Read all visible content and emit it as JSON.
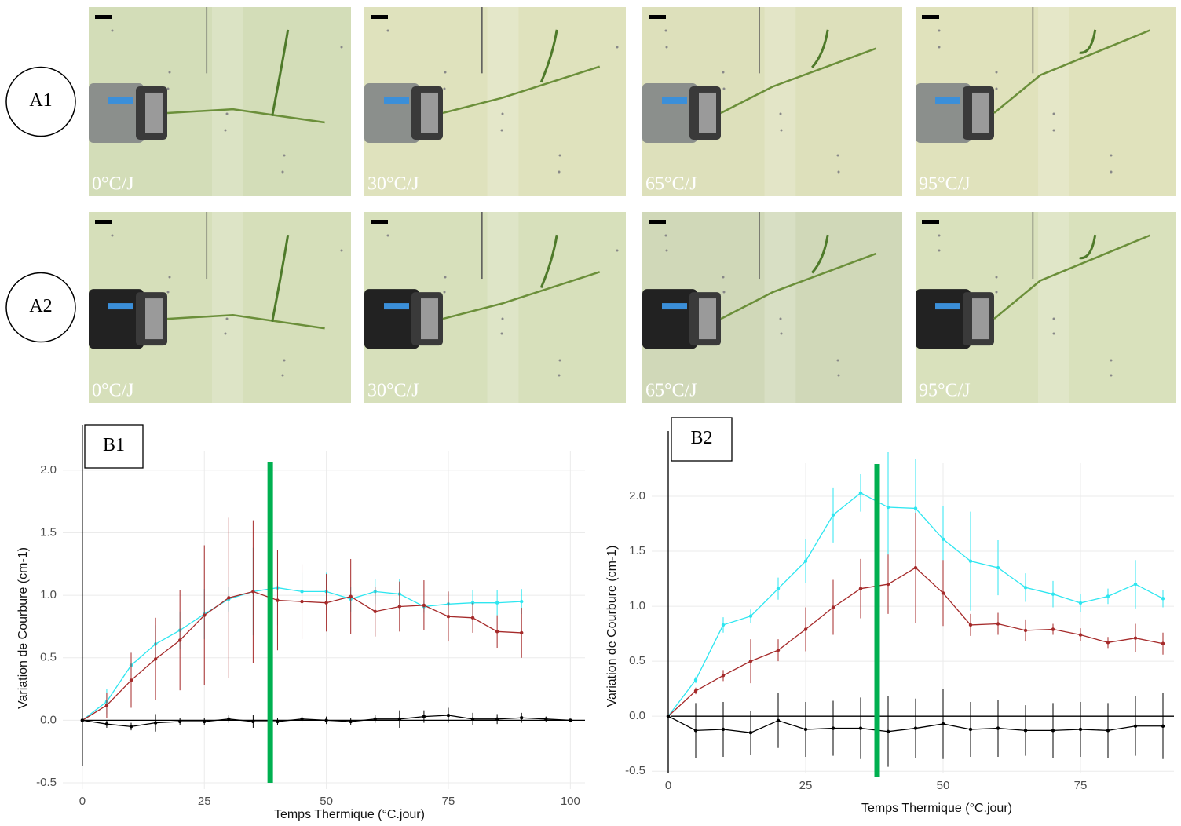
{
  "panels": {
    "rows": [
      {
        "label": "A1",
        "photos": [
          "0°C/J",
          "30°C/J",
          "65°C/J",
          "95°C/J"
        ]
      },
      {
        "label": "A2",
        "photos": [
          "0°C/J",
          "30°C/J",
          "65°C/J",
          "95°C/J"
        ]
      }
    ]
  },
  "chart_data": [
    {
      "type": "line",
      "label": "B1",
      "x_label": "Temps Thermique (°C.jour)",
      "y_label": "Variation de Courbure (cm-1)",
      "x": [
        0,
        5,
        10,
        15,
        20,
        25,
        30,
        35,
        40,
        45,
        50,
        55,
        60,
        65,
        70,
        75,
        80,
        85,
        90,
        95,
        100
      ],
      "xlim": [
        -4,
        103
      ],
      "xticks": [
        0,
        25,
        50,
        75,
        100
      ],
      "ylim": [
        -0.55,
        2.15
      ],
      "yticks": [
        {
          "value": 2,
          "label": "2.0"
        },
        1.5,
        {
          "value": 1,
          "label": "1.0"
        },
        0.5,
        {
          "value": 0,
          "label": "0.0"
        },
        -0.5
      ],
      "grid": true,
      "vline": {
        "x": 38.5,
        "color": "#00b050"
      },
      "series": [
        {
          "color": "#2ee6f0",
          "values": [
            0,
            0.15,
            0.44,
            0.61,
            0.72,
            0.85,
            0.97,
            1.03,
            1.06,
            1.03,
            1.03,
            0.97,
            1.03,
            1.01,
            0.91,
            0.93,
            0.94,
            0.94,
            0.95,
            null,
            null
          ],
          "errors": [
            0,
            0.1,
            0.1,
            0.15,
            0.15,
            0.2,
            0.1,
            0.35,
            0.3,
            0.15,
            0.15,
            0.1,
            0.1,
            0.12,
            0.05,
            0.1,
            0.1,
            0.1,
            0.1,
            null,
            null
          ]
        },
        {
          "color": "#a52a2a",
          "values": [
            0,
            0.12,
            0.32,
            0.49,
            0.64,
            0.84,
            0.98,
            1.03,
            0.96,
            0.95,
            0.94,
            0.99,
            0.87,
            0.91,
            0.92,
            0.83,
            0.82,
            0.71,
            0.7,
            null,
            null
          ],
          "errors": [
            0,
            0.1,
            0.22,
            0.33,
            0.4,
            0.56,
            0.64,
            0.57,
            0.4,
            0.3,
            0.23,
            0.3,
            0.2,
            0.2,
            0.2,
            0.2,
            0.12,
            0.13,
            0.2,
            null,
            null
          ]
        },
        {
          "color": "#000000",
          "values": [
            0,
            -0.03,
            -0.05,
            -0.02,
            -0.01,
            -0.01,
            0.01,
            -0.01,
            -0.01,
            0.01,
            0,
            -0.01,
            0.01,
            0.01,
            0.03,
            0.04,
            0.01,
            0.01,
            0.02,
            0.01,
            0
          ],
          "errors": [
            0,
            0.03,
            0.03,
            0.07,
            0.03,
            0.03,
            0.03,
            0.05,
            0.03,
            0.03,
            0.03,
            0.03,
            0.03,
            0.07,
            0.05,
            0.06,
            0.05,
            0.04,
            0.04,
            0.02,
            0.01
          ]
        }
      ]
    },
    {
      "type": "line",
      "label": "B2",
      "x_label": "Temps Thermique (°C.jour)",
      "y_label": "Variation de Courbure (cm-1)",
      "x": [
        0,
        5,
        10,
        15,
        20,
        25,
        30,
        35,
        40,
        45,
        50,
        55,
        60,
        65,
        70,
        75,
        80,
        85,
        90
      ],
      "xlim": [
        -3,
        92
      ],
      "xticks": [
        0,
        25,
        50,
        75
      ],
      "ylim": [
        -0.52,
        2.3
      ],
      "yticks": [
        {
          "value": 2,
          "label": "2.0"
        },
        1.5,
        {
          "value": 1,
          "label": "1.0"
        },
        0.5,
        {
          "value": 0,
          "label": "0.0"
        },
        -0.5
      ],
      "grid": true,
      "vline": {
        "x": 38,
        "color": "#00b050"
      },
      "series": [
        {
          "color": "#2ee6f0",
          "values": [
            0,
            0.33,
            0.83,
            0.91,
            1.16,
            1.41,
            1.83,
            2.03,
            1.9,
            1.89,
            1.61,
            1.41,
            1.35,
            1.17,
            1.11,
            1.03,
            1.09,
            1.2,
            1.07
          ],
          "errors": [
            0,
            0.03,
            0.07,
            0.06,
            0.1,
            0.2,
            0.25,
            0.17,
            0.5,
            0.45,
            0.3,
            0.45,
            0.25,
            0.13,
            0.12,
            0.08,
            0.07,
            0.22,
            0.08
          ]
        },
        {
          "color": "#a52a2a",
          "values": [
            0,
            0.23,
            0.37,
            0.5,
            0.6,
            0.79,
            0.99,
            1.16,
            1.2,
            1.35,
            1.12,
            0.83,
            0.84,
            0.78,
            0.79,
            0.74,
            0.67,
            0.71,
            0.66
          ],
          "errors": [
            0,
            0.03,
            0.05,
            0.2,
            0.1,
            0.2,
            0.25,
            0.27,
            0.27,
            0.5,
            0.3,
            0.1,
            0.1,
            0.1,
            0.05,
            0.06,
            0.05,
            0.13,
            0.1
          ]
        },
        {
          "color": "#000000",
          "values": [
            0,
            -0.13,
            -0.12,
            -0.15,
            -0.04,
            -0.12,
            -0.11,
            -0.11,
            -0.14,
            -0.11,
            -0.07,
            -0.12,
            -0.11,
            -0.13,
            -0.13,
            -0.12,
            -0.13,
            -0.09,
            -0.09
          ],
          "errors": [
            0,
            0.25,
            0.25,
            0.2,
            0.25,
            0.25,
            0.25,
            0.28,
            0.32,
            0.27,
            0.32,
            0.25,
            0.26,
            0.23,
            0.25,
            0.25,
            0.25,
            0.27,
            0.3
          ]
        }
      ]
    }
  ]
}
